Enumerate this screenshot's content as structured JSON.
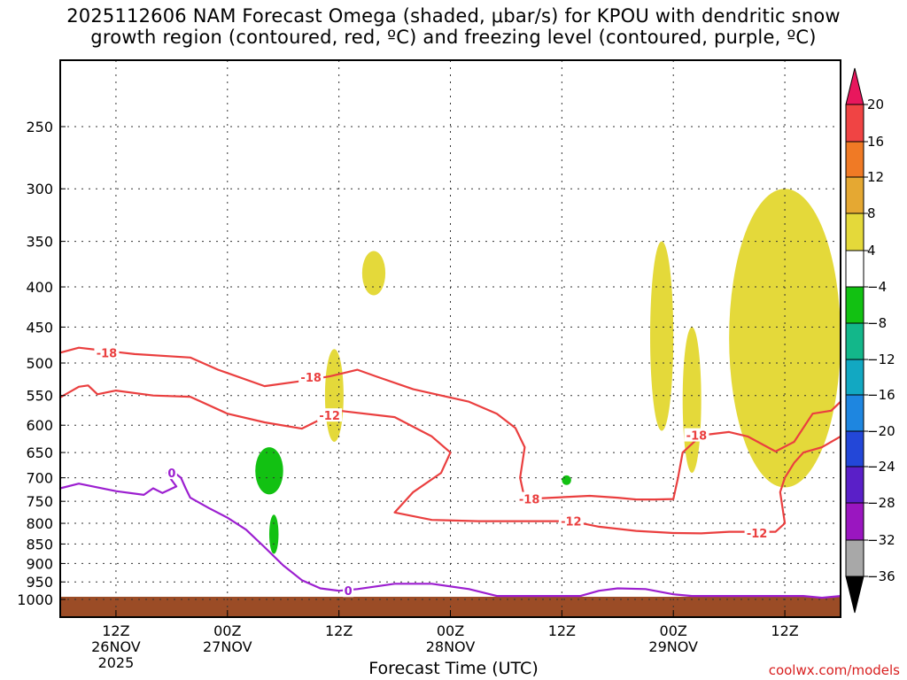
{
  "title_line1": "2025112606 NAM Forecast Omega (shaded, μbar/s) for KPOU with dendritic snow",
  "title_line2": "growth region (contoured, red, ºC) and freezing level (contoured, purple, ºC)",
  "credit": "coolwx.com/models",
  "chart_data": {
    "type": "time-height cross-section",
    "title": "2025112606 NAM Forecast Omega (shaded, μbar/s) for KPOU with dendritic snow growth region (contoured, red, ºC) and freezing level (contoured, purple, ºC)",
    "xlabel": "Forecast Time (UTC)",
    "ylabel": "",
    "y_scale": "log-pressure (inverted)",
    "y_ticks_hpa": [
      250,
      300,
      350,
      400,
      450,
      500,
      550,
      600,
      650,
      700,
      750,
      800,
      850,
      900,
      950,
      1000
    ],
    "y_range_hpa": [
      1000,
      200
    ],
    "x_range_hours": [
      0,
      84
    ],
    "x_ticks": [
      {
        "hour": 6,
        "lines": [
          "12Z",
          "26NOV",
          "2025"
        ]
      },
      {
        "hour": 18,
        "lines": [
          "00Z",
          "27NOV"
        ]
      },
      {
        "hour": 30,
        "lines": [
          "12Z",
          ""
        ]
      },
      {
        "hour": 42,
        "lines": [
          "00Z",
          "28NOV"
        ]
      },
      {
        "hour": 54,
        "lines": [
          "12Z",
          ""
        ]
      },
      {
        "hour": 66,
        "lines": [
          "00Z",
          "29NOV"
        ]
      },
      {
        "hour": 78,
        "lines": [
          "12Z",
          ""
        ]
      }
    ],
    "colorbar": {
      "units": "μbar/s",
      "labels": [
        "20",
        "16",
        "12",
        "8",
        "4",
        "-4",
        "-8",
        "-12",
        "-16",
        "-20",
        "-24",
        "-28",
        "-32",
        "-36"
      ],
      "colors": [
        "#e8175d",
        "#f04444",
        "#f07a25",
        "#e5a832",
        "#e4d93a",
        "#ffffff",
        "#12c112",
        "#13b78a",
        "#12a8c2",
        "#1e86e0",
        "#2347d8",
        "#5a1fc8",
        "#9a16c0",
        "#a8a8a8",
        "#000000"
      ]
    },
    "contours": [
      {
        "name": "DGZ -18C upper",
        "color": "#ea3f3f",
        "value": -18,
        "points_hpa": [
          [
            0,
            485
          ],
          [
            2,
            478
          ],
          [
            4,
            481
          ],
          [
            8,
            487
          ],
          [
            14,
            492
          ],
          [
            17,
            510
          ],
          [
            22,
            535
          ],
          [
            26,
            527
          ],
          [
            29,
            520
          ],
          [
            32,
            510
          ],
          [
            34,
            520
          ],
          [
            38,
            540
          ],
          [
            44,
            560
          ],
          [
            47,
            580
          ],
          [
            49,
            605
          ],
          [
            50,
            640
          ],
          [
            49.5,
            700
          ],
          [
            50,
            745
          ],
          [
            57,
            738
          ],
          [
            60,
            742
          ],
          [
            62,
            746
          ],
          [
            64,
            746
          ],
          [
            66,
            745
          ],
          [
            66.5,
            700
          ],
          [
            67,
            650
          ],
          [
            69,
            618
          ],
          [
            72,
            612
          ],
          [
            74,
            620
          ],
          [
            77,
            648
          ],
          [
            79,
            630
          ],
          [
            81,
            580
          ],
          [
            83,
            575
          ],
          [
            84,
            560
          ]
        ],
        "labels": [
          {
            "hour": 5,
            "hpa": 485,
            "text": "-18"
          },
          {
            "hour": 27,
            "hpa": 521,
            "text": "-18"
          },
          {
            "hour": 50.5,
            "hpa": 745,
            "text": "-18"
          },
          {
            "hour": 68.5,
            "hpa": 618,
            "text": "-18"
          }
        ]
      },
      {
        "name": "DGZ -12C lower",
        "color": "#ea3f3f",
        "value": -12,
        "points_hpa": [
          [
            0,
            553
          ],
          [
            2,
            536
          ],
          [
            3,
            534
          ],
          [
            4,
            548
          ],
          [
            6,
            542
          ],
          [
            10,
            550
          ],
          [
            14,
            552
          ],
          [
            18,
            580
          ],
          [
            22,
            595
          ],
          [
            26,
            606
          ],
          [
            28,
            590
          ],
          [
            30,
            575
          ],
          [
            36,
            586
          ],
          [
            40,
            620
          ],
          [
            42,
            650
          ],
          [
            41,
            690
          ],
          [
            38,
            730
          ],
          [
            36,
            775
          ],
          [
            40,
            792
          ],
          [
            45,
            795
          ],
          [
            55,
            795
          ],
          [
            58,
            808
          ],
          [
            62,
            818
          ],
          [
            66,
            823
          ],
          [
            69,
            824
          ],
          [
            72,
            820
          ],
          [
            74,
            820
          ],
          [
            77,
            820
          ],
          [
            78,
            800
          ],
          [
            77.5,
            730
          ],
          [
            78,
            700
          ],
          [
            79,
            670
          ],
          [
            80,
            650
          ],
          [
            82,
            640
          ],
          [
            84,
            620
          ]
        ],
        "labels": [
          {
            "hour": 29,
            "hpa": 583,
            "text": "-12"
          },
          {
            "hour": 55,
            "hpa": 795,
            "text": "-12"
          },
          {
            "hour": 75,
            "hpa": 823,
            "text": "-12"
          }
        ]
      },
      {
        "name": "Freezing level 0C",
        "color": "#9c1fd0",
        "value": 0,
        "points_hpa": [
          [
            0,
            722
          ],
          [
            2,
            712
          ],
          [
            6,
            728
          ],
          [
            9,
            736
          ],
          [
            10,
            722
          ],
          [
            11,
            732
          ],
          [
            12.5,
            718
          ],
          [
            12,
            705
          ],
          [
            11.5,
            690
          ],
          [
            12,
            685
          ],
          [
            13,
            700
          ],
          [
            13.5,
            722
          ],
          [
            14,
            742
          ],
          [
            16,
            765
          ],
          [
            18,
            787
          ],
          [
            20,
            815
          ],
          [
            22,
            858
          ],
          [
            24,
            905
          ],
          [
            26,
            945
          ],
          [
            28,
            968
          ],
          [
            30,
            975
          ],
          [
            32,
            970
          ],
          [
            36,
            955
          ],
          [
            40,
            955
          ],
          [
            44,
            970
          ],
          [
            47,
            990
          ],
          [
            50,
            990
          ],
          [
            56,
            990
          ],
          [
            58,
            975
          ],
          [
            60,
            968
          ],
          [
            63,
            970
          ],
          [
            66,
            985
          ],
          [
            68,
            990
          ],
          [
            80,
            990
          ],
          [
            82,
            995
          ],
          [
            84,
            990
          ]
        ],
        "labels": [
          {
            "hour": 12,
            "hpa": 690,
            "text": "0"
          },
          {
            "hour": 31,
            "hpa": 975,
            "text": "0"
          }
        ]
      }
    ],
    "shaded_regions": [
      {
        "value_range": "4 to 8",
        "color": "#e4d93a",
        "hours": [
          32.5,
          35
        ],
        "hpa": [
          360,
          410
        ]
      },
      {
        "value_range": "4 to 8",
        "color": "#e4d93a",
        "hours": [
          28.5,
          30.5
        ],
        "hpa": [
          480,
          630
        ]
      },
      {
        "value_range": "4 to 8",
        "color": "#e4d93a",
        "hours": [
          63.5,
          66
        ],
        "hpa": [
          350,
          610
        ]
      },
      {
        "value_range": "4 to 8",
        "color": "#e4d93a",
        "hours": [
          67,
          69
        ],
        "hpa": [
          450,
          690
        ]
      },
      {
        "value_range": "4 to 8",
        "color": "#e4d93a",
        "hours": [
          72,
          84
        ],
        "hpa": [
          300,
          720
        ]
      },
      {
        "value_range": "-8 to -4",
        "color": "#12c112",
        "hours": [
          21,
          24
        ],
        "hpa": [
          640,
          735
        ]
      },
      {
        "value_range": "-8 to -4",
        "color": "#12c112",
        "hours": [
          22.5,
          23.5
        ],
        "hpa": [
          780,
          875
        ]
      },
      {
        "value_range": "-8 to -4",
        "color": "#12c112",
        "hours": [
          54,
          55
        ],
        "hpa": [
          695,
          715
        ]
      }
    ]
  }
}
